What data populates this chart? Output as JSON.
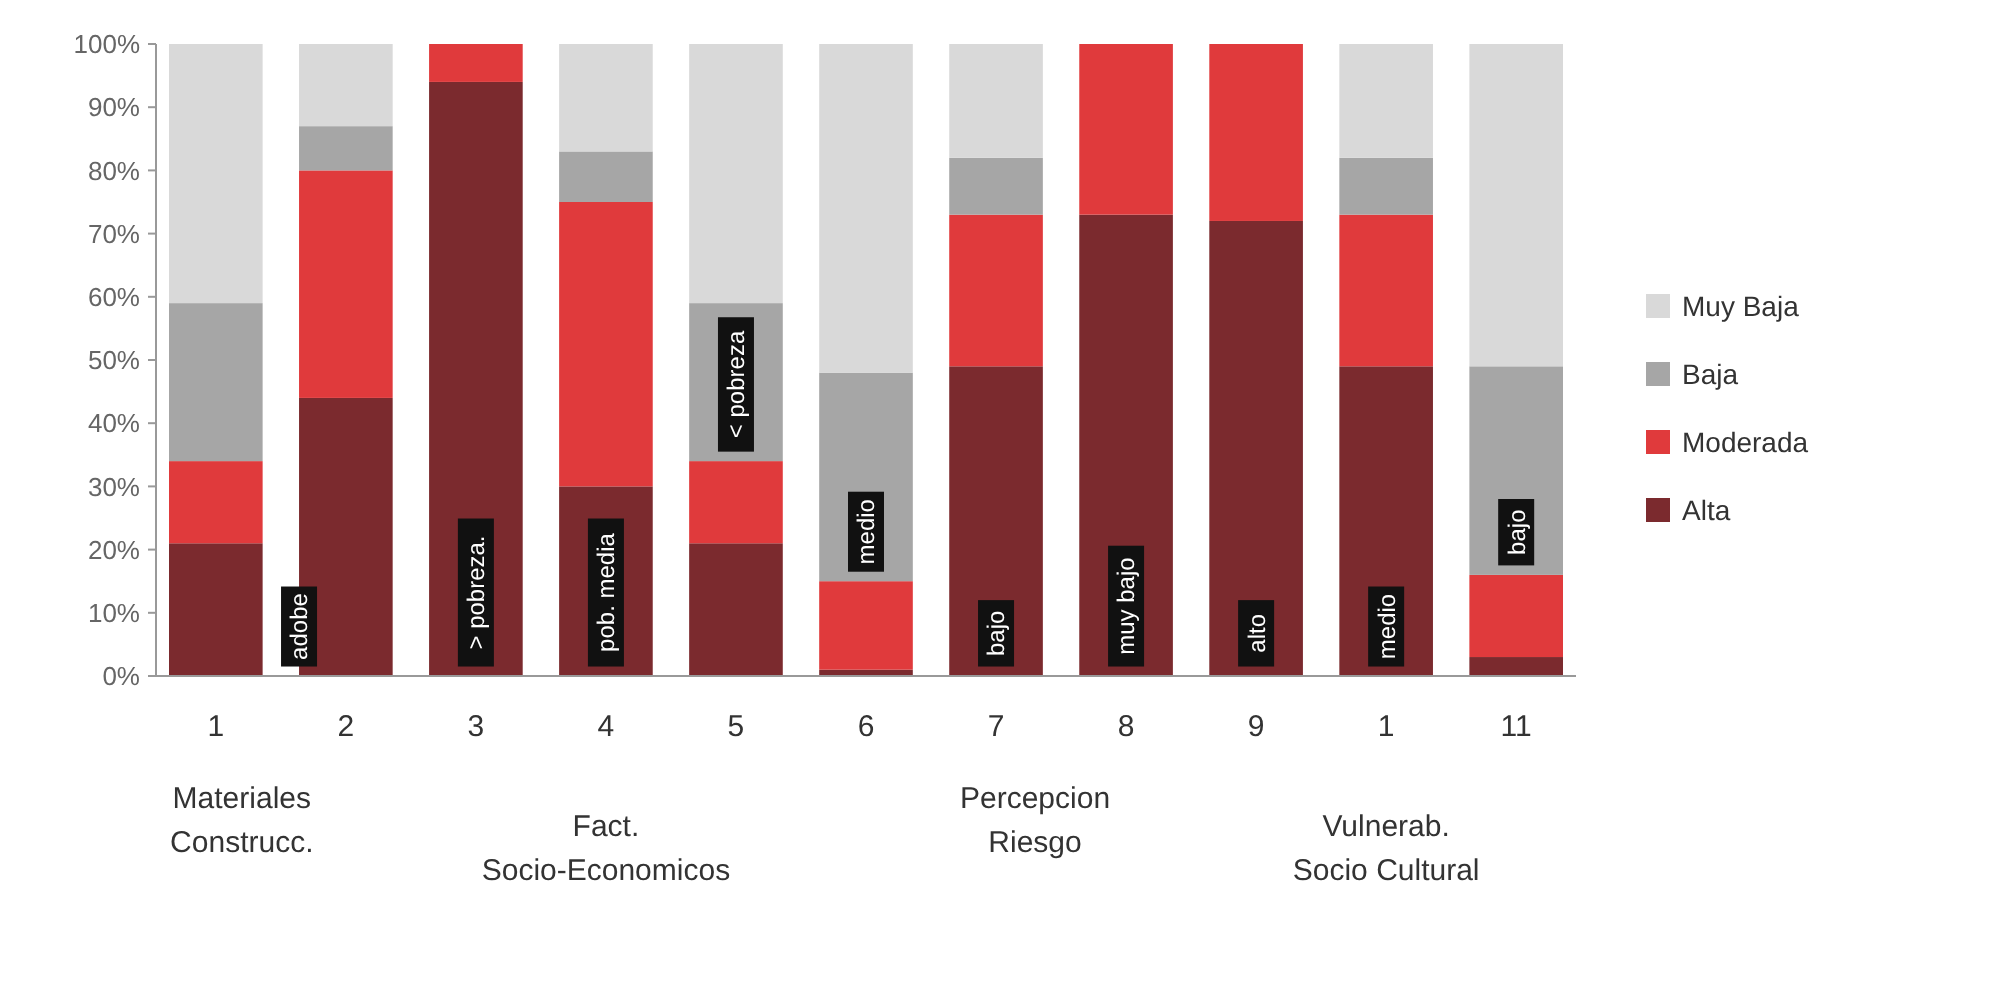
{
  "chart_data": {
    "type": "bar",
    "stacked": true,
    "categories": [
      "1",
      "2",
      "3",
      "4",
      "5",
      "6",
      "7",
      "8",
      "9",
      "1",
      "11"
    ],
    "series": [
      {
        "name": "Alta",
        "color": "#7b2a2e",
        "values": [
          21,
          44,
          94,
          30,
          21,
          1,
          49,
          73,
          72,
          49,
          3
        ]
      },
      {
        "name": "Moderada",
        "color": "#e03a3c",
        "values": [
          13,
          36,
          6,
          45,
          13,
          14,
          24,
          27,
          28,
          24,
          13
        ]
      },
      {
        "name": "Baja",
        "color": "#a6a6a6",
        "values": [
          25,
          7,
          0,
          8,
          25,
          33,
          9,
          0,
          0,
          9,
          33
        ]
      },
      {
        "name": "Muy Baja",
        "color": "#d9d9d9",
        "values": [
          41,
          13,
          0,
          17,
          41,
          52,
          18,
          0,
          0,
          18,
          51
        ]
      }
    ],
    "ylim": [
      0,
      100
    ],
    "yticks": [
      {
        "value": 0,
        "label": "0%"
      },
      {
        "value": 10,
        "label": "10%"
      },
      {
        "value": 20,
        "label": "20%"
      },
      {
        "value": 30,
        "label": "30%"
      },
      {
        "value": 40,
        "label": "40%"
      },
      {
        "value": 50,
        "label": "50%"
      },
      {
        "value": 60,
        "label": "60%"
      },
      {
        "value": 70,
        "label": "70%"
      },
      {
        "value": 80,
        "label": "80%"
      },
      {
        "value": 90,
        "label": "90%"
      },
      {
        "value": 100,
        "label": "100%"
      }
    ],
    "legend": "right",
    "grid": false,
    "annotations": [
      "adobe",
      "> pobreza.",
      "pob. media",
      "< pobreza",
      "medio",
      "bajo",
      "muy bajo",
      "alto",
      "medio",
      "bajo",
      "Materiales Construcc.",
      "Fact. Socio-Economicos",
      "Percepcion Riesgo",
      "Vulnerab. Socio Cultural"
    ]
  }
}
